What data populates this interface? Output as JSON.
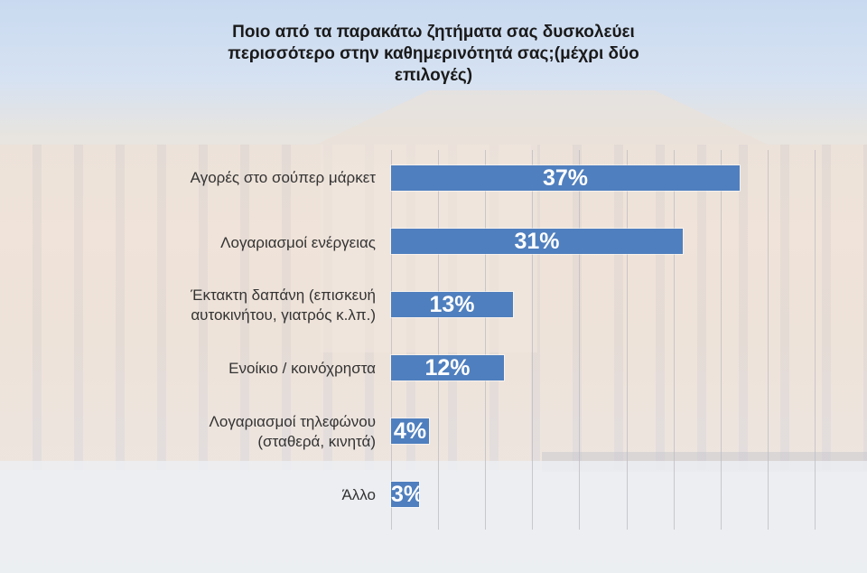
{
  "title": {
    "line1": "Ποιο από τα παρακάτω ζητήματα σας δυσκολεύει",
    "line2": "περισσότερο στην καθημερινότητά σας;(μέχρι δύο",
    "line3": "επιλογές)"
  },
  "colors": {
    "bar": "#4f7fbe",
    "label_text": "#333333",
    "value_text": "#ffffff"
  },
  "chart_data": {
    "type": "bar",
    "orientation": "horizontal",
    "title": "Ποιο από τα παρακάτω ζητήματα σας δυσκολεύει περισσότερο στην καθημερινότητά σας;(μέχρι δύο επιλογές)",
    "categories": [
      "Αγορές στο σούπερ μάρκετ",
      "Λογαριασμοί ενέργειας",
      "Έκτακτη δαπάνη (επισκευή αυτοκινήτου, γιατρός κ.λπ.)",
      "Ενοίκιο / κοινόχρηστα",
      "Λογαριασμοί τηλεφώνου (σταθερά, κινητά)",
      "Άλλο"
    ],
    "values": [
      37,
      31,
      13,
      12,
      4,
      3
    ],
    "value_labels": [
      "37%",
      "31%",
      "13%",
      "12%",
      "4%",
      "3%"
    ],
    "xlabel": "",
    "ylabel": "",
    "xlim": [
      0,
      45
    ],
    "grid": true,
    "gridline_step": 5,
    "legend": "none"
  },
  "rows": [
    {
      "label_l1": "Αγορές στο σούπερ μάρκετ",
      "label_l2": "",
      "value": 37,
      "value_label": "37%"
    },
    {
      "label_l1": "Λογαριασμοί ενέργειας",
      "label_l2": "",
      "value": 31,
      "value_label": "31%"
    },
    {
      "label_l1": "Έκτακτη δαπάνη (επισκευή",
      "label_l2": "αυτοκινήτου, γιατρός κ.λπ.)",
      "value": 13,
      "value_label": "13%"
    },
    {
      "label_l1": "Ενοίκιο / κοινόχρηστα",
      "label_l2": "",
      "value": 12,
      "value_label": "12%"
    },
    {
      "label_l1": "Λογαριασμοί τηλεφώνου",
      "label_l2": "(σταθερά, κινητά)",
      "value": 4,
      "value_label": "4%"
    },
    {
      "label_l1": "Άλλο",
      "label_l2": "",
      "value": 3,
      "value_label": "3%"
    }
  ]
}
